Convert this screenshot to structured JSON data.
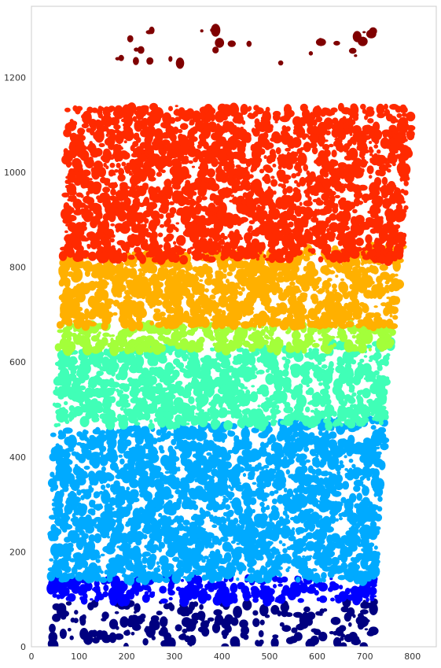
{
  "chart_data": {
    "type": "scatter",
    "title": "",
    "xlabel": "",
    "ylabel": "",
    "xlim": [
      0,
      850
    ],
    "ylim": [
      0,
      1350
    ],
    "grid": false,
    "legend": "none",
    "x_ticks": [
      0,
      100,
      200,
      300,
      400,
      500,
      600,
      700,
      800
    ],
    "y_ticks": [
      0,
      200,
      400,
      600,
      800,
      1000,
      1200
    ],
    "colormap": "jet",
    "bands": [
      {
        "color": "#000080",
        "x_left_bottom": 40,
        "x_left_top": 40,
        "x_right_bottom": 720,
        "x_right_top": 720,
        "y_bottom": 0,
        "y_top_left": 95,
        "y_top_right": 95,
        "density": 0.22
      },
      {
        "color": "#0000ff",
        "x_left_bottom": 40,
        "x_left_top": 40,
        "x_right_bottom": 720,
        "x_right_top": 725,
        "y_bottom": 95,
        "y_top_left": 145,
        "y_top_right": 145,
        "density": 0.5
      },
      {
        "color": "#00aaff",
        "x_left_bottom": 40,
        "x_left_top": 45,
        "x_right_bottom": 725,
        "x_right_top": 745,
        "y_bottom": 140,
        "y_top_left": 455,
        "y_top_right": 485,
        "density": 0.55
      },
      {
        "color": "#40ffb7",
        "x_left_bottom": 45,
        "x_left_top": 55,
        "x_right_bottom": 745,
        "x_right_top": 755,
        "y_bottom": 465,
        "y_top_left": 625,
        "y_top_right": 645,
        "density": 0.55
      },
      {
        "color": "#a3ff3a",
        "x_left_bottom": 55,
        "x_left_top": 60,
        "x_right_bottom": 755,
        "x_right_top": 765,
        "y_bottom": 625,
        "y_top_left": 680,
        "y_top_right": 680,
        "density": 0.55
      },
      {
        "color": "#ffb000",
        "x_left_bottom": 60,
        "x_left_top": 65,
        "x_right_bottom": 765,
        "x_right_top": 780,
        "y_bottom": 675,
        "y_top_left": 825,
        "y_top_right": 845,
        "density": 0.6
      },
      {
        "color": "#ff2a00",
        "x_left_bottom": 65,
        "x_left_top": 75,
        "x_right_bottom": 780,
        "x_right_top": 800,
        "y_bottom": 815,
        "y_top_left": 1140,
        "y_top_right": 1140,
        "density": 0.58
      },
      {
        "color": "#800000",
        "x_left_bottom": 180,
        "x_left_top": 180,
        "x_right_bottom": 720,
        "x_right_top": 720,
        "y_bottom": 1230,
        "y_top_left": 1300,
        "y_top_right": 1300,
        "density": 0.05
      }
    ],
    "band_boundaries": [
      {
        "x": [
          40,
          720
        ],
        "y": [
          95,
          95
        ]
      },
      {
        "x": [
          40,
          230,
          330,
          450,
          725
        ],
        "y": [
          145,
          145,
          140,
          185,
          145
        ]
      },
      {
        "x": [
          45,
          160,
          280,
          420,
          620,
          745
        ],
        "y": [
          455,
          450,
          470,
          480,
          475,
          485
        ]
      },
      {
        "x": [
          55,
          200,
          400,
          600,
          755
        ],
        "y": [
          625,
          628,
          640,
          645,
          645
        ]
      },
      {
        "x": [
          60,
          250,
          450,
          650,
          765
        ],
        "y": [
          680,
          675,
          680,
          680,
          675
        ]
      },
      {
        "x": [
          60,
          150,
          250,
          330,
          480,
          620,
          780
        ],
        "y": [
          825,
          830,
          860,
          895,
          900,
          870,
          845
        ]
      }
    ]
  }
}
